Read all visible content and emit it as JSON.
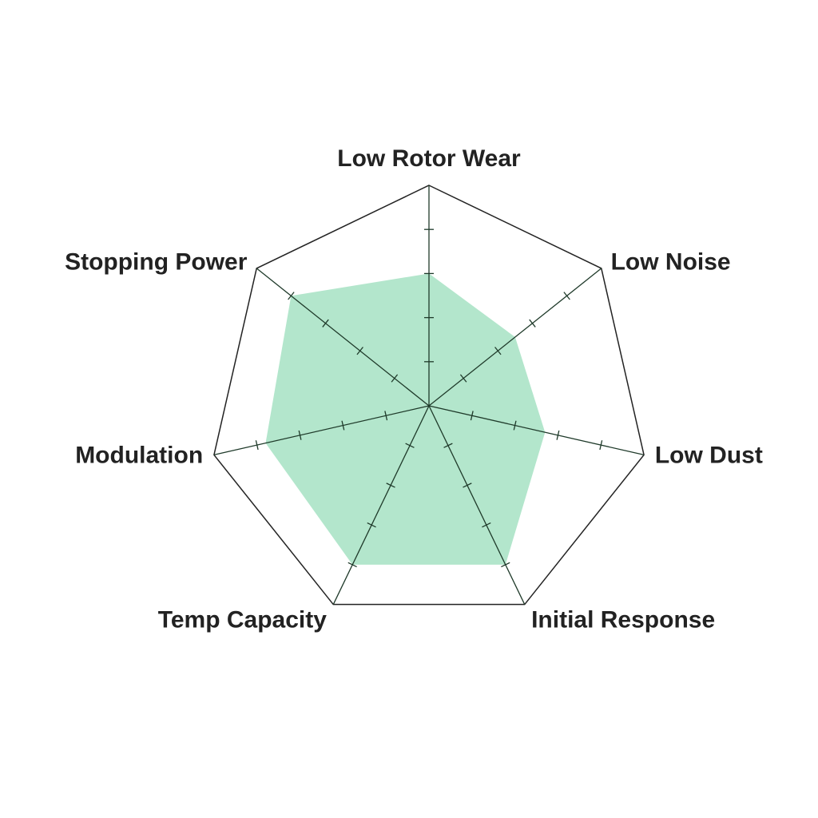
{
  "chart_data": {
    "type": "radar",
    "categories": [
      "Low Rotor Wear",
      "Low Noise",
      "Low Dust",
      "Initial Response",
      "Temp Capacity",
      "Modulation",
      "Stopping Power"
    ],
    "values": [
      3,
      2.5,
      2.7,
      4,
      4,
      3.8,
      4
    ],
    "color": "#b3e6cc",
    "rlim": [
      0,
      5
    ],
    "rticks": [
      1,
      2,
      3,
      4
    ]
  }
}
